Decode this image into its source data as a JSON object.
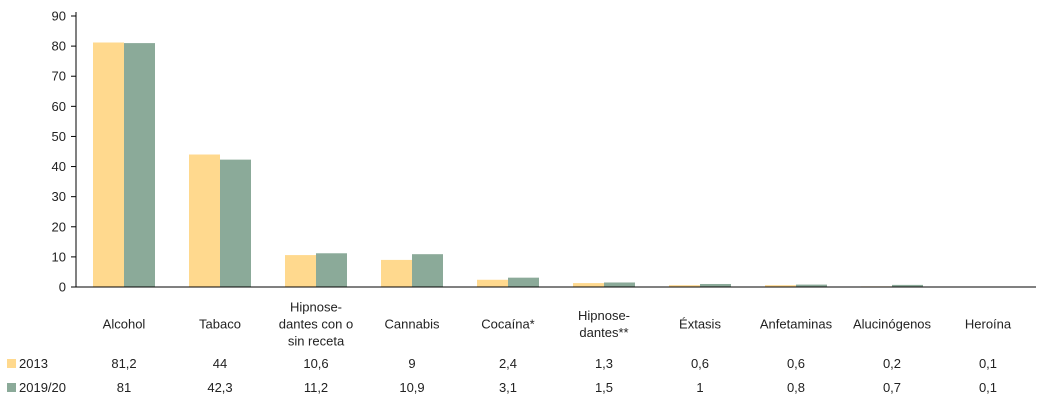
{
  "colors": {
    "series_2013": "#FFD98E",
    "series_2019": "#8BAA99",
    "axis": "#000000"
  },
  "chart_data": {
    "type": "bar",
    "categories": [
      [
        "Alcohol"
      ],
      [
        "Tabaco"
      ],
      [
        "Hipnose-",
        "dantes con o",
        "sin receta"
      ],
      [
        "Cannabis"
      ],
      [
        "Cocaína*"
      ],
      [
        "Hipnose-",
        "dantes**"
      ],
      [
        "Éxtasis"
      ],
      [
        "Anfetaminas"
      ],
      [
        "Alucinógenos"
      ],
      [
        "Heroína"
      ]
    ],
    "series": [
      {
        "name": "2013",
        "values": [
          81.2,
          44,
          10.6,
          9,
          2.4,
          1.3,
          0.6,
          0.6,
          0.2,
          0.1
        ],
        "labels": [
          "81,2",
          "44",
          "10,6",
          "9",
          "2,4",
          "1,3",
          "0,6",
          "0,6",
          "0,2",
          "0,1"
        ]
      },
      {
        "name": "2019/20",
        "values": [
          81,
          42.3,
          11.2,
          10.9,
          3.1,
          1.5,
          1,
          0.8,
          0.7,
          0.1
        ],
        "labels": [
          "81",
          "42,3",
          "11,2",
          "10,9",
          "3,1",
          "1,5",
          "1",
          "0,8",
          "0,7",
          "0,1"
        ]
      }
    ],
    "ylim": [
      0,
      90
    ],
    "yticks": [
      0,
      10,
      20,
      30,
      40,
      50,
      60,
      70,
      80,
      90
    ],
    "grid": false,
    "legend": "data-table-below"
  }
}
